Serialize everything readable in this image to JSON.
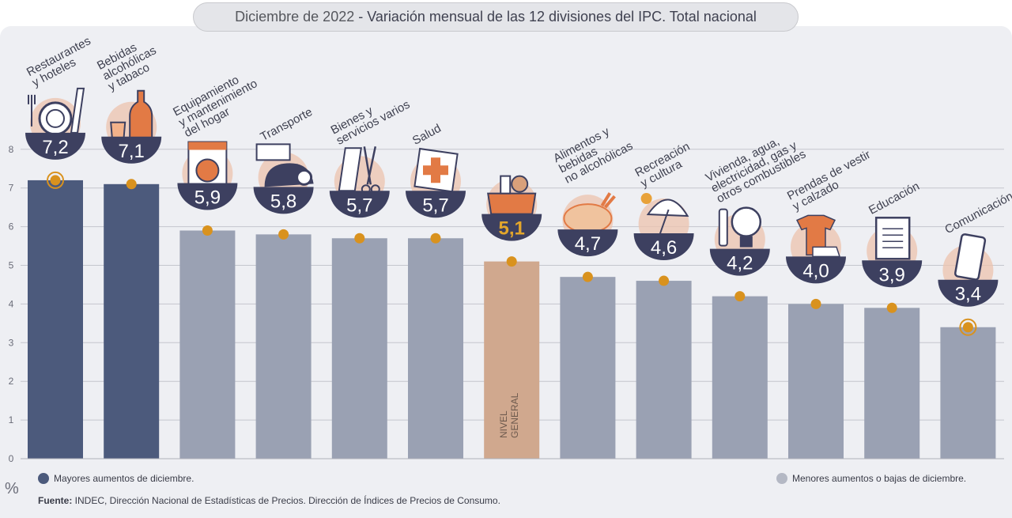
{
  "header": {
    "title_prefix": "Diciembre de 2022",
    "title_main": " - Variación mensual de las 12 divisiones del IPC. Total nacional"
  },
  "colors": {
    "highlight": "#4c5a7c",
    "normal": "#9aa1b3",
    "general": "#d0a88e",
    "dot": "#d9921e",
    "value_circle": "#3d4060",
    "value_text": "#ffffff",
    "value_text_general": "#e3a62b",
    "icon_tint": "#ecc3ad"
  },
  "chart_data": {
    "type": "bar",
    "ylabel": "%",
    "ylim": [
      0,
      8
    ],
    "yticks": [
      "0",
      "1",
      "2",
      "3",
      "4",
      "5",
      "6",
      "7",
      "8"
    ],
    "grid": true,
    "categories": [
      {
        "name": "Restaurantes y hoteles",
        "lines": [
          "Restaurantes",
          "y hoteles"
        ],
        "value": 7.2,
        "label": "7,2",
        "group": "highlight",
        "icon": "cutlery-plate-icon",
        "ring": true
      },
      {
        "name": "Bebidas alcohólicas y tabaco",
        "lines": [
          "Bebidas",
          "alcohólicas",
          "y tabaco"
        ],
        "value": 7.1,
        "label": "7,1",
        "group": "highlight",
        "icon": "wine-bottle-icon",
        "ring": false
      },
      {
        "name": "Equipamiento y mantenimiento del hogar",
        "lines": [
          "Equipamiento",
          "y mantenimiento",
          "del hogar"
        ],
        "value": 5.9,
        "label": "5,9",
        "group": "normal",
        "icon": "washing-machine-icon",
        "ring": false
      },
      {
        "name": "Transporte",
        "lines": [
          "Transporte"
        ],
        "value": 5.8,
        "label": "5,8",
        "group": "normal",
        "icon": "sube-card-car-icon",
        "ring": false
      },
      {
        "name": "Bienes y servicios varios",
        "lines": [
          "Bienes y",
          "servicios varios"
        ],
        "value": 5.7,
        "label": "5,7",
        "group": "normal",
        "icon": "comb-scissors-icon",
        "ring": false
      },
      {
        "name": "Salud",
        "lines": [
          "Salud"
        ],
        "value": 5.7,
        "label": "5,7",
        "group": "normal",
        "icon": "first-aid-icon",
        "ring": false
      },
      {
        "name": "Nivel general",
        "lines": [],
        "value": 5.1,
        "label": "5,1",
        "group": "general",
        "icon": "shopping-bag-icon",
        "ring": false,
        "bar_text": [
          "NIVEL",
          "GENERAL"
        ]
      },
      {
        "name": "Alimentos y bebidas no alcohólicas",
        "lines": [
          "Alimentos y",
          "bebidas",
          "no alcohólicas"
        ],
        "value": 4.7,
        "label": "4,7",
        "group": "normal",
        "icon": "roast-chicken-icon",
        "ring": false
      },
      {
        "name": "Recreación y cultura",
        "lines": [
          "Recreación",
          "y cultura"
        ],
        "value": 4.6,
        "label": "4,6",
        "group": "normal",
        "icon": "umbrella-sun-icon",
        "ring": false
      },
      {
        "name": "Vivienda, agua, electricidad, gas y otros combustibles",
        "lines": [
          "Vivienda, agua,",
          "electricidad, gas y",
          "otros combustibles"
        ],
        "value": 4.2,
        "label": "4,2",
        "group": "normal",
        "icon": "lightbulb-icon",
        "ring": false
      },
      {
        "name": "Prendas de vestir y calzado",
        "lines": [
          "Prendas de vestir",
          "y calzado"
        ],
        "value": 4.0,
        "label": "4,0",
        "group": "normal",
        "icon": "tshirt-shoe-icon",
        "ring": false
      },
      {
        "name": "Educación",
        "lines": [
          "Educación"
        ],
        "value": 3.9,
        "label": "3,9",
        "group": "normal",
        "icon": "notebook-icon",
        "ring": false
      },
      {
        "name": "Comunicación",
        "lines": [
          "Comunicación"
        ],
        "value": 3.4,
        "label": "3,4",
        "group": "normal",
        "icon": "smartphone-icon",
        "ring": true
      }
    ]
  },
  "legend": {
    "highlight": "Mayores aumentos de diciembre.",
    "normal": "Menores aumentos o bajas de diciembre."
  },
  "footnote": {
    "label": "Fuente:",
    "text": " INDEC, Dirección Nacional de Estadísticas de Precios. Dirección de Índices de Precios de Consumo."
  }
}
